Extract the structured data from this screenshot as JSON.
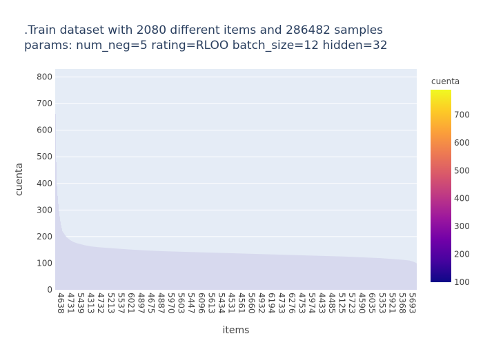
{
  "chart_data": {
    "type": "bar",
    "title_lines": [
      ".Train dataset with 2080 different items and 286482 samples",
      "params: num_neg=5 rating=RLOO batch_size=12 hidden=32"
    ],
    "xlabel": "items",
    "ylabel": "cuenta",
    "ylim": [
      0,
      830
    ],
    "yticks": [
      0,
      100,
      200,
      300,
      400,
      500,
      600,
      700,
      800
    ],
    "grid": true,
    "n_items": 2080,
    "x_tick_labels": [
      "4638",
      "4731",
      "5439",
      "4313",
      "4732",
      "5213",
      "5537",
      "6021",
      "4897",
      "4675",
      "4887",
      "5970",
      "5603",
      "5447",
      "6096",
      "5613",
      "5434",
      "4531",
      "4561",
      "5660",
      "4932",
      "6194",
      "4733",
      "6276",
      "4753",
      "5974",
      "4433",
      "4485",
      "5125",
      "5723",
      "4590",
      "6035",
      "5353",
      "5921",
      "5368",
      "5693"
    ],
    "profile_rank_fraction": [
      0,
      0.002,
      0.005,
      0.01,
      0.015,
      0.02,
      0.03,
      0.04,
      0.05,
      0.06,
      0.08,
      0.1,
      0.12,
      0.15,
      0.2,
      0.25,
      0.3,
      0.35,
      0.4,
      0.45,
      0.5,
      0.55,
      0.6,
      0.65,
      0.7,
      0.75,
      0.8,
      0.85,
      0.9,
      0.93,
      0.96,
      0.98,
      0.99,
      1.0
    ],
    "profile_values": [
      790,
      520,
      380,
      300,
      250,
      220,
      200,
      188,
      180,
      175,
      168,
      163,
      160,
      157,
      152,
      148,
      145,
      143,
      141,
      139,
      137,
      135,
      133,
      131,
      129,
      127,
      125,
      122,
      119,
      116,
      113,
      110,
      106,
      100
    ],
    "colorbar": {
      "title": "cuenta",
      "range": [
        100,
        790
      ],
      "ticks": [
        100,
        200,
        300,
        400,
        500,
        600,
        700
      ],
      "colors": [
        "#0d0887",
        "#46039f",
        "#7201a8",
        "#9c179e",
        "#bd3786",
        "#d8576b",
        "#ed7953",
        "#fb9f3a",
        "#fdca26",
        "#f0f921"
      ]
    },
    "colors": {
      "plot_bg": "#e5ecf6",
      "grid": "#ffffff",
      "bar": "#d7d9ee"
    }
  }
}
